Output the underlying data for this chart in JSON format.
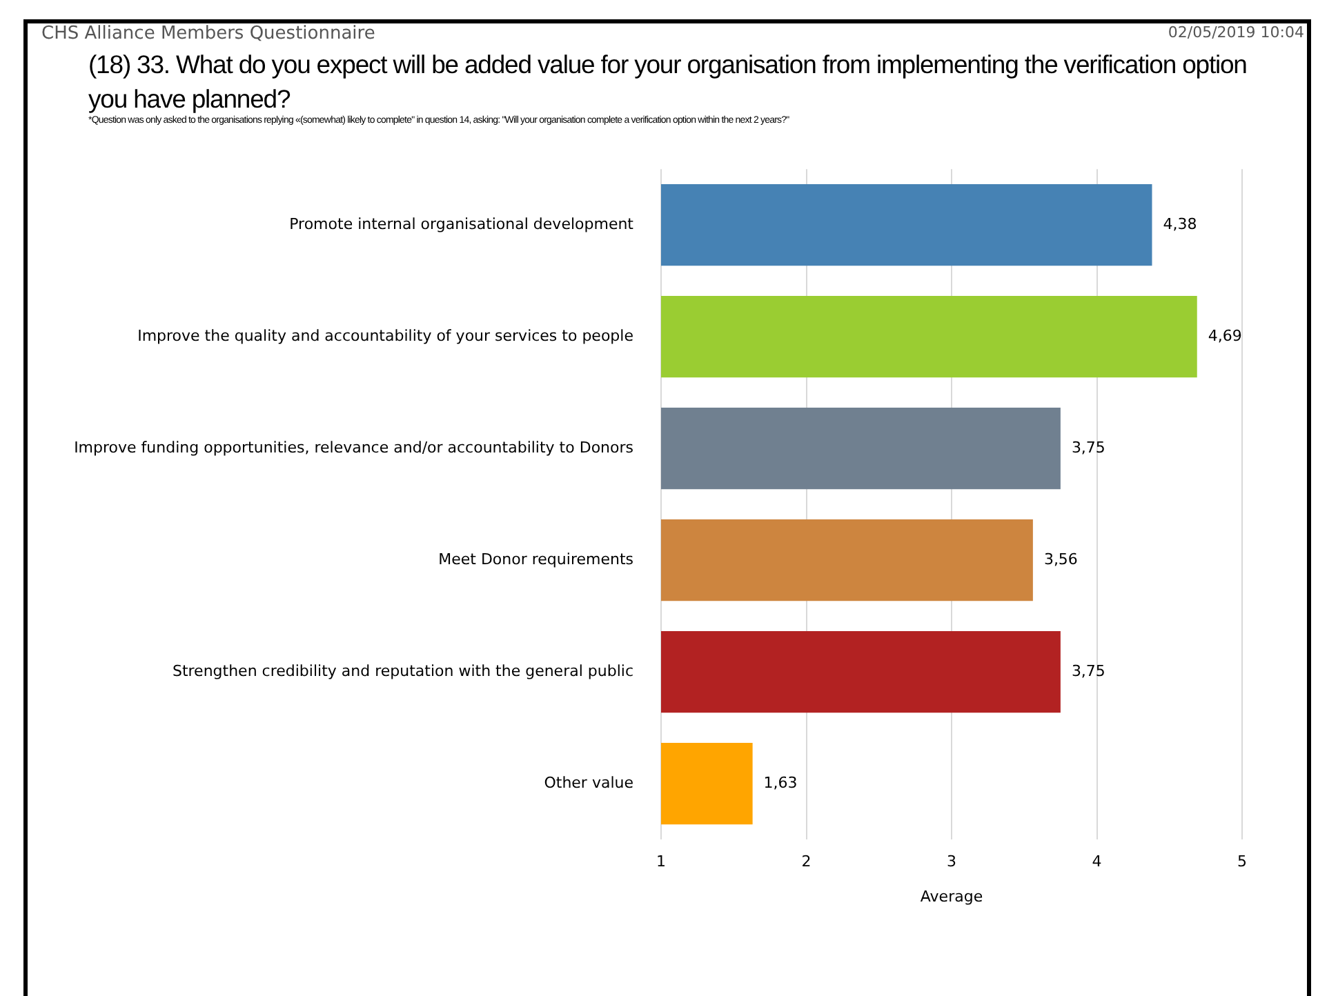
{
  "chart_data": {
    "type": "bar",
    "orientation": "horizontal",
    "title": "(18) 33. What do you expect will be added value for your organisation from implementing the verification option you have planned?",
    "subtitle": "*Question was only asked to the organisations replying «(somewhat) likely to complete\" in question 14, asking: \"Will your organisation complete a verification option within the next 2 years?\"",
    "annotations": [
      "CHS Alliance Members Questionnaire",
      "02/05/2019 10:04"
    ],
    "xlabel": "Average",
    "categories": [
      "Promote internal organisational development",
      "Improve the quality and accountability of your services to people",
      "Improve funding opportunities, relevance and/or accountability to Donors",
      "Meet Donor requirements",
      "Strengthen credibility and reputation with the general public",
      "Other value"
    ],
    "values": [
      4.38,
      4.69,
      3.75,
      3.56,
      3.75,
      1.63
    ],
    "value_labels": [
      "4,38",
      "4,69",
      "3,75",
      "3,56",
      "3,75",
      "1,63"
    ],
    "colors": [
      "#4682b4",
      "#9acd32",
      "#708090",
      "#cd853f",
      "#b22222",
      "#ffa500"
    ],
    "xlim": [
      1,
      5
    ],
    "xticks": [
      1,
      2,
      3,
      4,
      5
    ],
    "grid": "x"
  }
}
